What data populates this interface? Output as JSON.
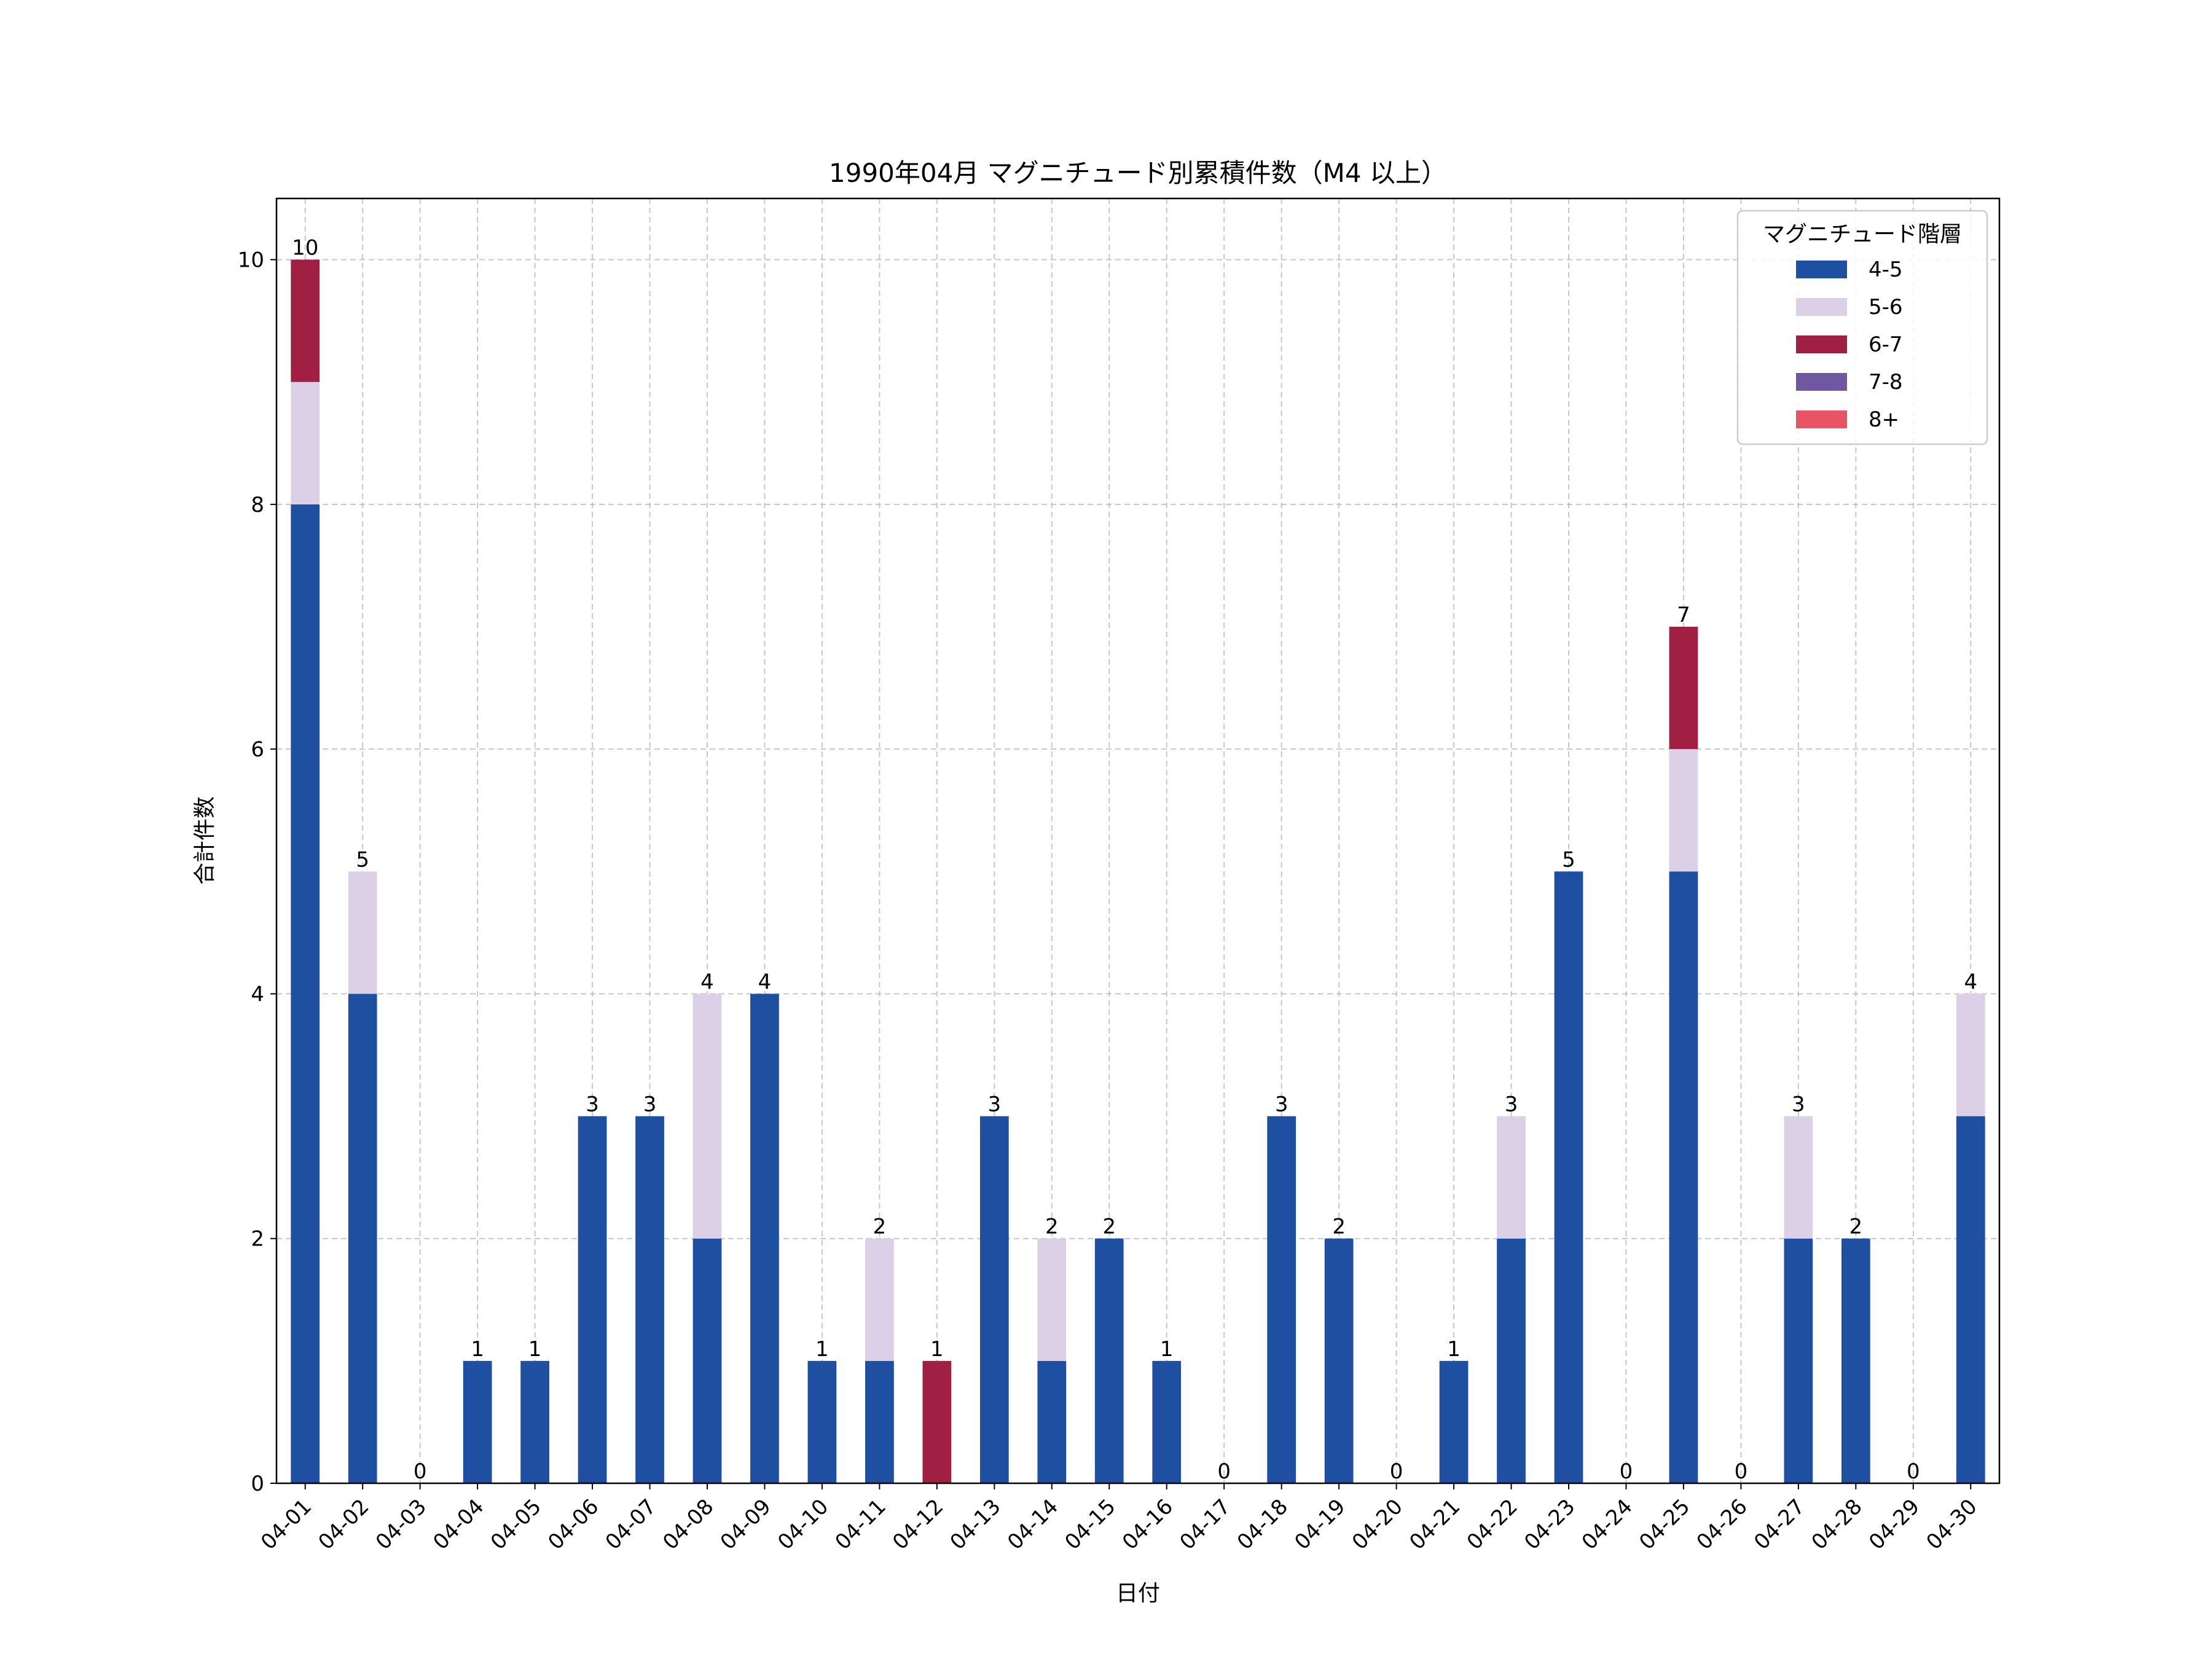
{
  "chart_data": {
    "type": "bar",
    "stacked": true,
    "title": "1990年04月 マグニチュード別累積件数（M4 以上）",
    "xlabel": "日付",
    "ylabel": "合計件数",
    "ylim": [
      0,
      10.5
    ],
    "yticks": [
      0,
      2,
      4,
      6,
      8,
      10
    ],
    "grid": true,
    "legend": {
      "title": "マグニチュード階層",
      "placement": "top-right"
    },
    "categories": [
      "04-01",
      "04-02",
      "04-03",
      "04-04",
      "04-05",
      "04-06",
      "04-07",
      "04-08",
      "04-09",
      "04-10",
      "04-11",
      "04-12",
      "04-13",
      "04-14",
      "04-15",
      "04-16",
      "04-17",
      "04-18",
      "04-19",
      "04-20",
      "04-21",
      "04-22",
      "04-23",
      "04-24",
      "04-25",
      "04-26",
      "04-27",
      "04-28",
      "04-29",
      "04-30"
    ],
    "series": [
      {
        "name": "4-5",
        "color": "#1f4fa0",
        "values": [
          8,
          4,
          0,
          1,
          1,
          3,
          3,
          2,
          4,
          1,
          1,
          0,
          3,
          1,
          2,
          1,
          0,
          3,
          2,
          0,
          1,
          2,
          5,
          0,
          5,
          0,
          2,
          2,
          0,
          3
        ]
      },
      {
        "name": "5-6",
        "color": "#dcd0e6",
        "values": [
          1,
          1,
          0,
          0,
          0,
          0,
          0,
          2,
          0,
          0,
          1,
          0,
          0,
          1,
          0,
          0,
          0,
          0,
          0,
          0,
          0,
          1,
          0,
          0,
          1,
          0,
          1,
          0,
          0,
          1
        ]
      },
      {
        "name": "6-7",
        "color": "#a01f42",
        "values": [
          1,
          0,
          0,
          0,
          0,
          0,
          0,
          0,
          0,
          0,
          0,
          1,
          0,
          0,
          0,
          0,
          0,
          0,
          0,
          0,
          0,
          0,
          0,
          0,
          1,
          0,
          0,
          0,
          0,
          0
        ]
      },
      {
        "name": "7-8",
        "color": "#7058a0",
        "values": [
          0,
          0,
          0,
          0,
          0,
          0,
          0,
          0,
          0,
          0,
          0,
          0,
          0,
          0,
          0,
          0,
          0,
          0,
          0,
          0,
          0,
          0,
          0,
          0,
          0,
          0,
          0,
          0,
          0,
          0
        ]
      },
      {
        "name": "8+",
        "color": "#e85466",
        "values": [
          0,
          0,
          0,
          0,
          0,
          0,
          0,
          0,
          0,
          0,
          0,
          0,
          0,
          0,
          0,
          0,
          0,
          0,
          0,
          0,
          0,
          0,
          0,
          0,
          0,
          0,
          0,
          0,
          0,
          0
        ]
      }
    ],
    "totals": [
      10,
      5,
      0,
      1,
      1,
      3,
      3,
      4,
      4,
      1,
      2,
      1,
      3,
      2,
      2,
      1,
      0,
      3,
      2,
      0,
      1,
      3,
      5,
      0,
      7,
      0,
      3,
      2,
      0,
      4
    ]
  }
}
